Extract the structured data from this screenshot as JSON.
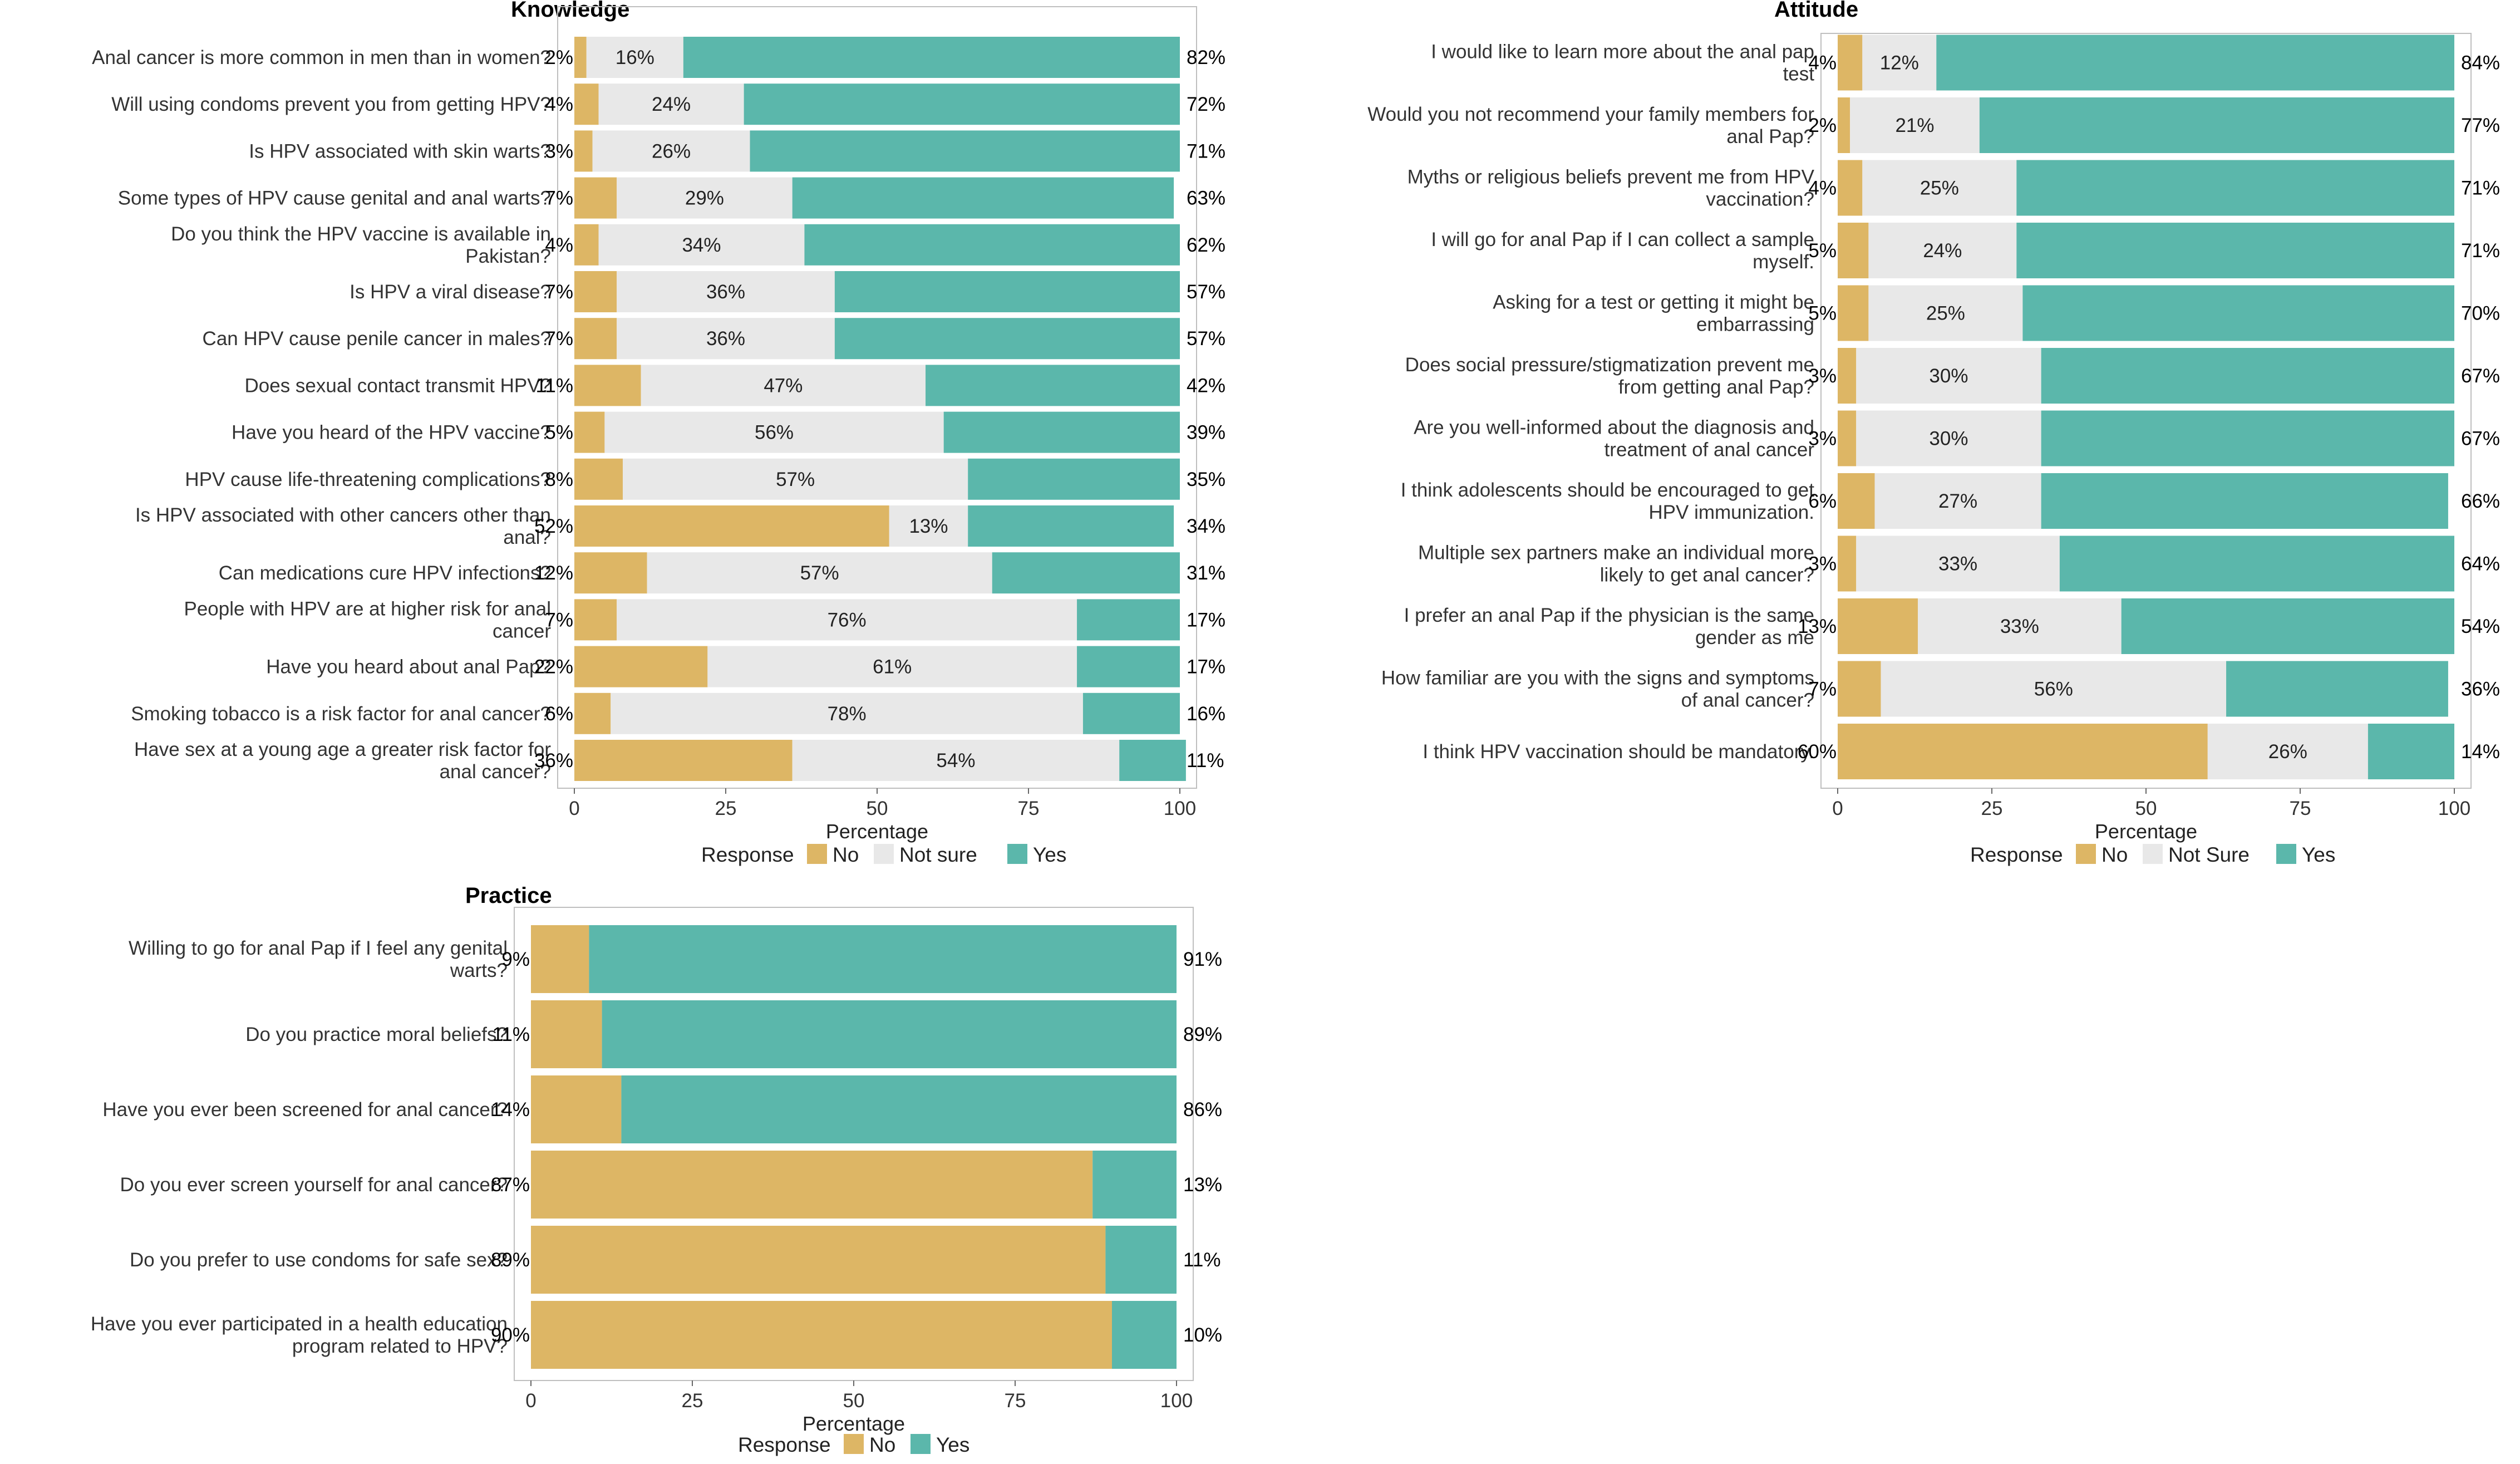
{
  "colors": {
    "no": "#DDB665",
    "not_sure": "#E8E8E8",
    "yes": "#5BB7AB",
    "frame": "#BFBFBF",
    "background": "#FFFFFF"
  },
  "chart_data": [
    {
      "id": "knowledge",
      "type": "bar",
      "orientation": "horizontal-stacked",
      "title": "Knowledge",
      "xlabel": "Percentage",
      "ylabel": "",
      "xlim": [
        0,
        100
      ],
      "xticks": [
        "0",
        "25",
        "50",
        "75",
        "100"
      ],
      "legend": {
        "title": "Response",
        "placement": "bottom",
        "labels": [
          "No",
          "Not sure",
          "Yes"
        ]
      },
      "categories": [
        [
          "Anal cancer is more common in men than in women?"
        ],
        [
          "Will using condoms prevent you from getting HPV?"
        ],
        [
          "Is HPV associated with skin warts?"
        ],
        [
          "Some types of HPV cause genital and anal warts?"
        ],
        [
          "Do you think the HPV vaccine is available in",
          "Pakistan?"
        ],
        [
          "Is HPV a viral disease?"
        ],
        [
          "Can HPV cause penile cancer in males?"
        ],
        [
          "Does sexual contact transmit HPV?"
        ],
        [
          "Have you heard of the HPV vaccine?"
        ],
        [
          "HPV cause life-threatening complications?"
        ],
        [
          "Is HPV associated with other cancers other than",
          "anal?"
        ],
        [
          "Can medications cure HPV infections?"
        ],
        [
          "People with HPV are at higher risk for anal",
          "cancer"
        ],
        [
          "Have you heard about anal Pap?"
        ],
        [
          "Smoking tobacco is a risk factor for anal cancer?"
        ],
        [
          "Have sex at a young age a greater risk factor for",
          "anal cancer?"
        ]
      ],
      "series": [
        {
          "name": "No",
          "values": [
            2,
            4,
            3,
            7,
            4,
            7,
            7,
            11,
            5,
            8,
            52,
            12,
            7,
            22,
            6,
            36
          ]
        },
        {
          "name": "Not sure",
          "values": [
            16,
            24,
            26,
            29,
            34,
            36,
            36,
            47,
            56,
            57,
            13,
            57,
            76,
            61,
            78,
            54
          ]
        },
        {
          "name": "Yes",
          "values": [
            82,
            72,
            71,
            63,
            62,
            57,
            57,
            42,
            39,
            35,
            34,
            31,
            17,
            17,
            16,
            11
          ]
        }
      ],
      "labels": {
        "No": [
          "2%",
          "4%",
          "3%",
          "7%",
          "4%",
          "7%",
          "7%",
          "11%",
          "5%",
          "8%",
          "52%",
          "12%",
          "7%",
          "22%",
          "6%",
          "36%"
        ],
        "Not sure": [
          "16%",
          "24%",
          "26%",
          "29%",
          "34%",
          "36%",
          "36%",
          "47%",
          "56%",
          "57%",
          "13%",
          "57%",
          "76%",
          "61%",
          "78%",
          "54%"
        ],
        "Yes": [
          "82%",
          "72%",
          "71%",
          "63%",
          "62%",
          "57%",
          "57%",
          "42%",
          "39%",
          "35%",
          "34%",
          "31%",
          "17%",
          "17%",
          "16%",
          "11%"
        ]
      }
    },
    {
      "id": "attitude",
      "type": "bar",
      "orientation": "horizontal-stacked",
      "title": "Attitude",
      "xlabel": "Percentage",
      "ylabel": "",
      "xlim": [
        0,
        100
      ],
      "xticks": [
        "0",
        "25",
        "50",
        "75",
        "100"
      ],
      "legend": {
        "title": "Response",
        "placement": "bottom",
        "labels": [
          "No",
          "Not Sure",
          "Yes"
        ]
      },
      "categories": [
        [
          "I would like to learn more about the anal pap",
          "test"
        ],
        [
          "Would you not recommend your family members for",
          "anal Pap?"
        ],
        [
          "Myths or religious beliefs prevent me from HPV",
          "vaccination?"
        ],
        [
          "I will go for anal Pap if I can collect a sample",
          "myself."
        ],
        [
          "Asking for a test or getting it might be",
          "embarrassing"
        ],
        [
          "Does social pressure/stigmatization prevent me",
          "from getting anal Pap?"
        ],
        [
          "Are you well-informed about the diagnosis and",
          "treatment of anal cancer"
        ],
        [
          "I think adolescents should be encouraged to get",
          "HPV immunization."
        ],
        [
          "Multiple sex partners make an individual more",
          "likely to get anal cancer?"
        ],
        [
          "I prefer an anal Pap if the physician is the same",
          "gender as me"
        ],
        [
          "How familiar are you with the signs and symptoms",
          "of anal cancer?"
        ],
        [
          "I think HPV vaccination should be mandatory."
        ]
      ],
      "series": [
        {
          "name": "No",
          "values": [
            4,
            2,
            4,
            5,
            5,
            3,
            3,
            6,
            3,
            13,
            7,
            60
          ]
        },
        {
          "name": "Not Sure",
          "values": [
            12,
            21,
            25,
            24,
            25,
            30,
            30,
            27,
            33,
            33,
            56,
            26
          ]
        },
        {
          "name": "Yes",
          "values": [
            84,
            77,
            71,
            71,
            70,
            67,
            67,
            66,
            64,
            54,
            36,
            14
          ]
        }
      ],
      "labels": {
        "No": [
          "4%",
          "2%",
          "4%",
          "5%",
          "5%",
          "3%",
          "3%",
          "6%",
          "3%",
          "13%",
          "7%",
          "60%"
        ],
        "Not Sure": [
          "12%",
          "21%",
          "25%",
          "24%",
          "25%",
          "30%",
          "30%",
          "27%",
          "33%",
          "33%",
          "56%",
          "26%"
        ],
        "Yes": [
          "84%",
          "77%",
          "71%",
          "71%",
          "70%",
          "67%",
          "67%",
          "66%",
          "64%",
          "54%",
          "36%",
          "14%"
        ]
      }
    },
    {
      "id": "practice",
      "type": "bar",
      "orientation": "horizontal-stacked",
      "title": "Practice",
      "xlabel": "Percentage",
      "ylabel": "",
      "xlim": [
        0,
        100
      ],
      "xticks": [
        "0",
        "25",
        "50",
        "75",
        "100"
      ],
      "legend": {
        "title": "Response",
        "placement": "bottom",
        "labels": [
          "No",
          "Yes"
        ]
      },
      "categories": [
        [
          "Willing to go for anal Pap if I feel any genital",
          "warts?"
        ],
        [
          "Do you practice moral beliefs?"
        ],
        [
          "Have you ever been screened for anal cancer?"
        ],
        [
          "Do you ever screen yourself for anal cancer?"
        ],
        [
          "Do you prefer to use condoms for safe sex?"
        ],
        [
          "Have you ever participated in a health education",
          "program related to HPV?"
        ]
      ],
      "series": [
        {
          "name": "No",
          "values": [
            9,
            11,
            14,
            87,
            89,
            90
          ]
        },
        {
          "name": "Yes",
          "values": [
            91,
            89,
            86,
            13,
            11,
            10
          ]
        }
      ],
      "labels": {
        "No": [
          "9%",
          "11%",
          "14%",
          "87%",
          "89%",
          "90%"
        ],
        "Yes": [
          "91%",
          "89%",
          "86%",
          "13%",
          "11%",
          "10%"
        ]
      }
    }
  ]
}
